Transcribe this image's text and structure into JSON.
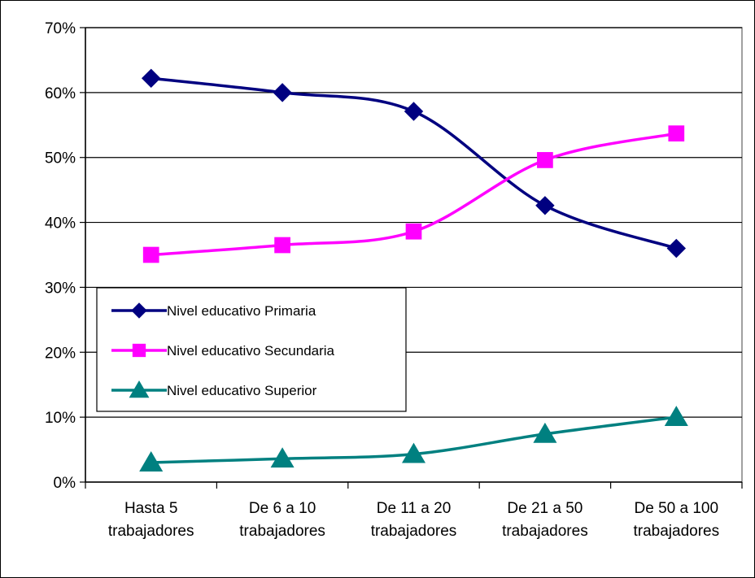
{
  "chart_data": {
    "type": "line",
    "title": "",
    "xlabel": "",
    "ylabel": "",
    "categories": [
      [
        "Hasta 5",
        "trabajadores"
      ],
      [
        "De 6 a 10",
        "trabajadores"
      ],
      [
        "De 11 a 20",
        "trabajadores"
      ],
      [
        "De 21 a 50",
        "trabajadores"
      ],
      [
        "De 50 a 100",
        "trabajadores"
      ]
    ],
    "y_ticks": [
      "0%",
      "10%",
      "20%",
      "30%",
      "40%",
      "50%",
      "60%",
      "70%"
    ],
    "ylim": [
      0,
      70
    ],
    "y_unit": "%",
    "grid": true,
    "smooth": true,
    "legend_position": "left-middle",
    "series": [
      {
        "name": "Nivel educativo Primaria",
        "values": [
          62.2,
          60.0,
          57.1,
          42.6,
          36.0
        ],
        "color": "#000080",
        "marker": "diamond"
      },
      {
        "name": "Nivel educativo Secundaria",
        "values": [
          35.0,
          36.5,
          38.6,
          49.6,
          53.7
        ],
        "color": "#ff00ff",
        "marker": "square"
      },
      {
        "name": "Nivel educativo Superior",
        "values": [
          3.0,
          3.6,
          4.3,
          7.4,
          10.0
        ],
        "color": "#008080",
        "marker": "triangle"
      }
    ]
  }
}
